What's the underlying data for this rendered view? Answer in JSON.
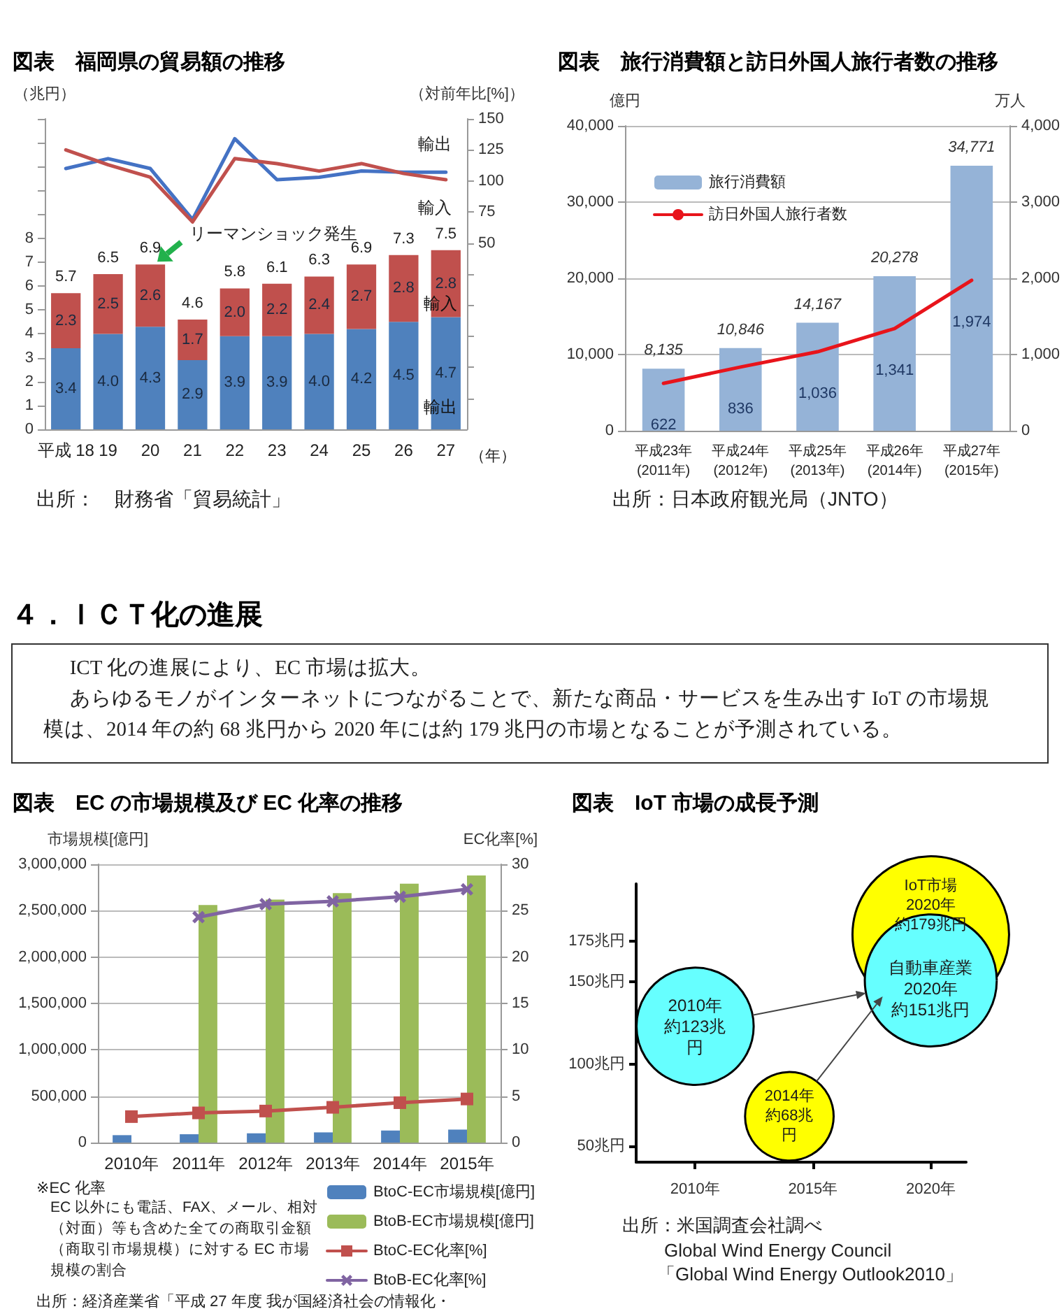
{
  "chart_data": [
    {
      "type": "bar",
      "title": "図表　福岡県の貿易額の推移",
      "categories": [
        "平成 18",
        "19",
        "20",
        "21",
        "22",
        "23",
        "24",
        "25",
        "26",
        "27"
      ],
      "xlabel": "（年）",
      "ylabel": "（兆円）",
      "y2label": "（対前年比[%]）",
      "stacked": true,
      "series": [
        {
          "name": "輸出",
          "color": "#4f81bd",
          "values": [
            3.4,
            4.0,
            4.3,
            2.9,
            3.9,
            3.9,
            4.0,
            4.2,
            4.5,
            4.7
          ],
          "value_labels": [
            "3.4",
            "4.0",
            "4.3",
            "2.9",
            "3.9",
            "3.9",
            "4.0",
            "4.2",
            "4.5",
            "4.7"
          ]
        },
        {
          "name": "輸入",
          "color": "#c0504d",
          "values": [
            2.3,
            2.5,
            2.6,
            1.7,
            2.0,
            2.2,
            2.4,
            2.7,
            2.8,
            2.8
          ],
          "value_labels": [
            "2.3",
            "2.5",
            "2.6",
            "1.7",
            "2.0",
            "2.2",
            "2.4",
            "2.7",
            "2.8",
            "2.8"
          ]
        },
        {
          "type": "line",
          "name": "輸出",
          "color": "#4472c4",
          "axis": "y2",
          "values": [
            110,
            118,
            110,
            69,
            134,
            101,
            103,
            108,
            107,
            107
          ]
        },
        {
          "type": "line",
          "name": "輸入",
          "color": "#c0504d",
          "axis": "y2",
          "values": [
            125,
            113,
            103,
            67,
            118,
            114,
            108,
            114,
            106,
            101
          ]
        }
      ],
      "totals": [
        "5.7",
        "6.5",
        "6.9",
        "4.6",
        "5.8",
        "6.1",
        "6.3",
        "6.9",
        "7.3",
        "7.5"
      ],
      "ylim": [
        0,
        13
      ],
      "yticks": [
        0,
        1,
        2,
        3,
        4,
        5,
        6,
        7,
        8,
        {
          "value": 9,
          "label": null
        },
        {
          "value": 10,
          "label": null
        },
        {
          "value": 11,
          "label": null
        },
        {
          "value": 12,
          "label": null
        },
        {
          "value": 13,
          "label": null
        }
      ],
      "y2lim": [
        -100,
        150
      ],
      "y2ticks": [
        {
          "value": -75,
          "label": null
        },
        {
          "value": -50,
          "label": null
        },
        {
          "value": -25,
          "label": null
        },
        {
          "value": 0,
          "label": null
        },
        {
          "value": 25,
          "label": null
        },
        50,
        75,
        100,
        125,
        150
      ],
      "grid": false,
      "legend": false,
      "marker": "none",
      "annotations": [
        {
          "text": "リーマンショック発生",
          "x": "20",
          "y": 6.9
        },
        "出所：　財務省「貿易統計」"
      ]
    },
    {
      "type": "bar",
      "title": "図表　旅行消費額と訪日外国人旅行者数の推移",
      "categories": [
        "平成23年(2011年)",
        "平成24年(2012年)",
        "平成25年(2013年)",
        "平成26年(2014年)",
        "平成27年(2015年)"
      ],
      "ylabel": "億円",
      "y2label": "万人",
      "series": [
        {
          "name": "旅行消費額",
          "color": "#95b3d7",
          "values": [
            8135,
            10846,
            14167,
            20278,
            34771
          ],
          "value_labels": [
            "8,135",
            "10,846",
            "14,167",
            "20,278",
            "34,771"
          ]
        },
        {
          "type": "line",
          "name": "訪日外国人旅行者数",
          "color": "#e8141b",
          "axis": "y2",
          "values": [
            622,
            836,
            1036,
            1341,
            1974
          ],
          "value_labels": [
            "622",
            "836",
            "1,036",
            "1,341",
            "1,974"
          ]
        }
      ],
      "ylim": [
        0,
        40000
      ],
      "yticks": [
        0,
        {
          "value": 10000,
          "label": "10,000"
        },
        {
          "value": 20000,
          "label": "20,000"
        },
        {
          "value": 30000,
          "label": "30,000"
        },
        {
          "value": 40000,
          "label": "40,000"
        }
      ],
      "y2lim": [
        0,
        4000
      ],
      "y2ticks": [
        0,
        {
          "value": 1000,
          "label": "1,000"
        },
        {
          "value": 2000,
          "label": "2,000"
        },
        {
          "value": 3000,
          "label": "3,000"
        },
        {
          "value": 4000,
          "label": "4,000"
        }
      ],
      "grid": "y",
      "legend": "top left",
      "marker": "none",
      "annotations": [
        "出所：日本政府観光局（JNTO）"
      ]
    },
    {
      "type": "other",
      "title": "４．ＩＣＴ化の進展",
      "annotations": [
        "ICT 化の進展により、EC 市場は拡大。",
        "あらゆるモノがインターネットにつながることで、新たな商品・サービスを生み出す IoT の市場規模は、2014 年の約 68 兆円から 2020 年には約 179 兆円の市場となることが予測されている。"
      ]
    },
    {
      "type": "bar",
      "title": "図表　EC の市場規模及び EC 化率の推移",
      "categories": [
        "2010年",
        "2011年",
        "2012年",
        "2013年",
        "2014年",
        "2015年"
      ],
      "ylabel": "市場規模[億円]",
      "y2label": "EC化率[%]",
      "series": [
        {
          "name": "BtoC-EC市場規模[億円]",
          "color": "#4f81bd",
          "values": [
            80000,
            90000,
            100000,
            110000,
            130000,
            140000
          ]
        },
        {
          "name": "BtoB-EC市場規模[億円]",
          "color": "#9bbb59",
          "values": [
            null,
            2560000,
            2620000,
            2690000,
            2790000,
            2880000
          ]
        },
        {
          "type": "line",
          "name": "BtoC-EC化率[%]",
          "color": "#c0504d",
          "axis": "y2",
          "marker": "square",
          "values": [
            2.8,
            3.2,
            3.4,
            3.8,
            4.3,
            4.7
          ]
        },
        {
          "type": "line",
          "name": "BtoB-EC化率[%]",
          "color": "#8064a2",
          "axis": "y2",
          "marker": "cross",
          "values": [
            null,
            24.3,
            25.7,
            26.0,
            26.5,
            27.3
          ]
        }
      ],
      "ylim": [
        0,
        3000000
      ],
      "yticks": [
        0,
        {
          "value": 500000,
          "label": "500,000"
        },
        {
          "value": 1000000,
          "label": "1,000,000"
        },
        {
          "value": 1500000,
          "label": "1,500,000"
        },
        {
          "value": 2000000,
          "label": "2,000,000"
        },
        {
          "value": 2500000,
          "label": "2,500,000"
        },
        {
          "value": 3000000,
          "label": "3,000,000"
        }
      ],
      "y2lim": [
        0,
        30
      ],
      "y2ticks": [
        0,
        5,
        10,
        15,
        20,
        25,
        30
      ],
      "grid": "y",
      "legend": "bottom right",
      "annotations": [
        "※EC 化率",
        "EC 以外にも電話、FAX、メール、相対（対面）等も含めた全ての商取引金額（商取引市場規模）に対する EC 市場規模の割合",
        "出所：経済産業省「平成 27 年度 我が国経済社会の情報化・"
      ]
    },
    {
      "type": "bubble",
      "title": "図表　IoT 市場の成長予測",
      "series": [
        {
          "color": "#ffff00",
          "x": [
            2014,
            2020
          ],
          "values": [
            68,
            179
          ],
          "sizes": [
            0.32,
            1
          ]
        },
        {
          "color": "#66ffff",
          "x": [
            2010,
            2020
          ],
          "values": [
            123,
            151
          ],
          "sizes": [
            0.56,
            0.71
          ]
        }
      ],
      "xlim": [
        2007.5,
        2021.5
      ],
      "xticks": [
        {
          "value": 2010,
          "label": "2010年"
        },
        {
          "value": 2015,
          "label": "2015年"
        },
        {
          "value": 2020,
          "label": "2020年"
        }
      ],
      "ylim": [
        40,
        210
      ],
      "yticks": [
        {
          "value": 50,
          "label": "50兆円"
        },
        {
          "value": 100,
          "label": "100兆円"
        },
        {
          "value": 150,
          "label": "150兆円"
        },
        {
          "value": 175,
          "label": "175兆円"
        }
      ],
      "grid": false,
      "annotations": [
        {
          "text": "2010年",
          "x": 2010,
          "y": 123
        },
        {
          "text": "約123兆",
          "x": 2010,
          "y": 123
        },
        {
          "text": "円",
          "x": 2010,
          "y": 123
        },
        {
          "text": "2014年",
          "x": 2014,
          "y": 68
        },
        {
          "text": "約68兆",
          "x": 2014,
          "y": 68
        },
        {
          "text": "円",
          "x": 2014,
          "y": 68
        },
        {
          "text": "IoT市場",
          "x": 2020,
          "y": 179
        },
        {
          "text": "2020年",
          "x": 2020,
          "y": 179
        },
        {
          "text": "約179兆円",
          "x": 2020,
          "y": 179
        },
        {
          "text": "自動車産業",
          "x": 2020,
          "y": 151
        },
        {
          "text": "2020年",
          "x": 2020,
          "y": 151
        },
        {
          "text": "約151兆円",
          "x": 2020,
          "y": 151
        },
        "出所：米国調査会社調べ",
        "Global Wind Energy Council",
        "「Global Wind Energy Outlook2010」"
      ]
    }
  ]
}
